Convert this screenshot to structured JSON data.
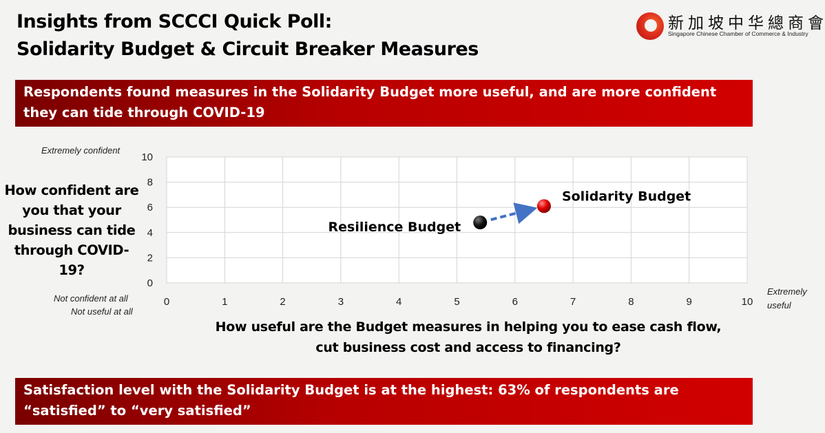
{
  "header": {
    "title_line1": "Insights from SCCCI Quick Poll:",
    "title_line2": "Solidarity Budget & Circuit Breaker Measures"
  },
  "logo": {
    "chinese_name": "新加坡中华總商會",
    "english_name": "Singapore Chinese Chamber of Commerce & Industry",
    "mark_color": "#e0301e"
  },
  "banners": {
    "top": "Respondents found measures in the Solidarity Budget more useful, and are more confident they can tide through COVID-19",
    "bottom": "Satisfaction level with the Solidarity Budget is at the highest: 63% of respondents are “satisfied” to “very satisfied”"
  },
  "axis_annotations": {
    "y_top": "Extremely confident",
    "y_bottom": "Not confident at all",
    "x_left": "Not useful at all",
    "x_right_line1": "Extremely",
    "x_right_line2": "useful"
  },
  "chart_data": {
    "type": "scatter",
    "title": "",
    "xlabel": "How useful are the Budget measures in helping you to ease cash flow, cut business cost and access to financing?",
    "ylabel": "How confident are you that your business can tide through COVID-19?",
    "xlim": [
      0,
      10
    ],
    "ylim": [
      0,
      10
    ],
    "xticks": [
      0,
      1,
      2,
      3,
      4,
      5,
      6,
      7,
      8,
      9,
      10
    ],
    "yticks": [
      0,
      2,
      4,
      6,
      8,
      10
    ],
    "grid": true,
    "points": [
      {
        "name": "Resilience Budget",
        "x": 5.4,
        "y": 4.8,
        "color": "#000000"
      },
      {
        "name": "Solidarity Budget",
        "x": 6.5,
        "y": 6.1,
        "color": "#e00000"
      }
    ],
    "annotations": [
      {
        "type": "arrow",
        "from": "Resilience Budget",
        "to": "Solidarity Budget",
        "color": "#4472c4",
        "style": "dashed"
      }
    ]
  }
}
